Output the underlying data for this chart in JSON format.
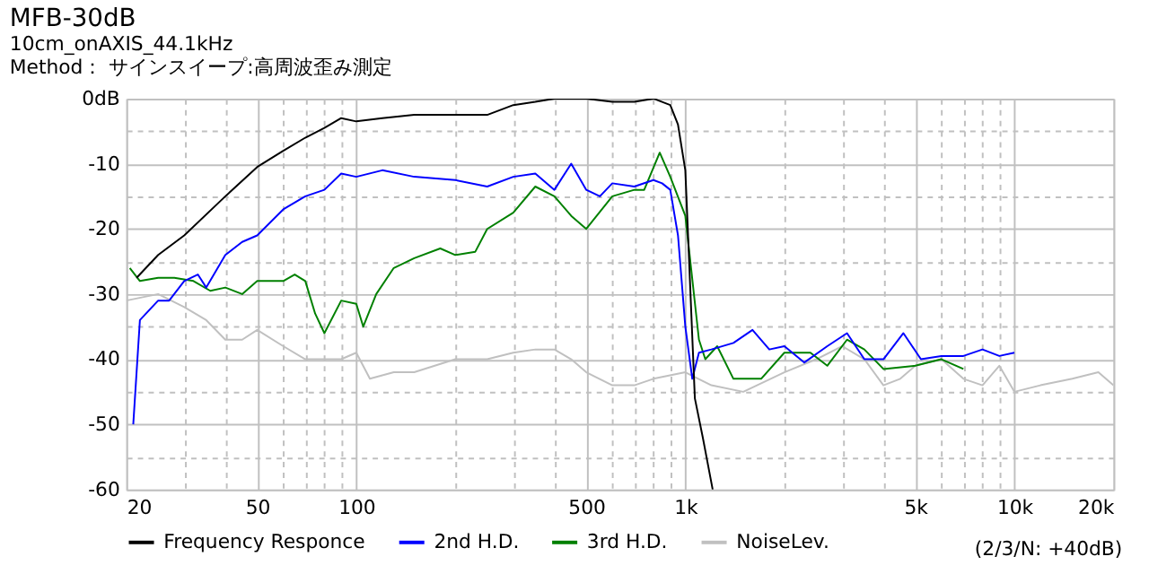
{
  "chart_data": {
    "type": "line",
    "title": "MFB-30dB",
    "subtitle": "10cm_onAXIS_44.1kHz\nMethod： サインスイープ:高周波歪み測定",
    "log": "x",
    "grid": true,
    "legend": "bottom",
    "marker": "none",
    "line_style": "solid",
    "xlim": [
      20,
      20000
    ],
    "ylim": [
      -60,
      0
    ],
    "xticks": [
      20,
      {
        "value": 30,
        "label": null
      },
      {
        "value": 40,
        "label": null
      },
      50,
      {
        "value": 60,
        "label": null
      },
      {
        "value": 70,
        "label": null
      },
      {
        "value": 80,
        "label": null
      },
      {
        "value": 90,
        "label": null
      },
      100,
      {
        "value": 200,
        "label": null
      },
      {
        "value": 300,
        "label": null
      },
      {
        "value": 400,
        "label": null
      },
      500,
      {
        "value": 600,
        "label": null
      },
      {
        "value": 700,
        "label": null
      },
      {
        "value": 800,
        "label": null
      },
      {
        "value": 900,
        "label": null
      },
      {
        "value": 1000,
        "label": "1k"
      },
      {
        "value": 2000,
        "label": null
      },
      {
        "value": 3000,
        "label": null
      },
      {
        "value": 4000,
        "label": null
      },
      {
        "value": 5000,
        "label": "5k"
      },
      {
        "value": 6000,
        "label": null
      },
      {
        "value": 7000,
        "label": null
      },
      {
        "value": 8000,
        "label": null
      },
      {
        "value": 9000,
        "label": null
      },
      {
        "value": 10000,
        "label": "10k"
      },
      {
        "value": 20000,
        "label": "20k"
      }
    ],
    "yticks": [
      {
        "value": 0,
        "label": "0dB"
      },
      {
        "value": -5,
        "label": null
      },
      -10,
      {
        "value": -15,
        "label": null
      },
      -20,
      {
        "value": -25,
        "label": null
      },
      -30,
      {
        "value": -35,
        "label": null
      },
      -40,
      {
        "value": -45,
        "label": null
      },
      -50,
      {
        "value": -55,
        "label": null
      },
      -60
    ],
    "annotations": [
      "(2/3/N: +40dB)"
    ],
    "series": [
      {
        "name": "Frequency Responce",
        "color": "#000000",
        "x": [
          21.5,
          25,
          30,
          40,
          50,
          60,
          70,
          80,
          90,
          100,
          120,
          150,
          200,
          250,
          300,
          350,
          400,
          450,
          500,
          600,
          700,
          800,
          850,
          900,
          950,
          1000,
          1069,
          1130,
          1211
        ],
        "values": [
          -27.5,
          -24,
          -21,
          -15,
          -10.5,
          -8,
          -6,
          -4.5,
          -3,
          -3.5,
          -3,
          -2.5,
          -2.5,
          -2.5,
          -1,
          -0.5,
          0,
          0,
          0,
          -0.5,
          -0.5,
          0,
          -0.5,
          -1,
          -4,
          -11,
          -46,
          -52,
          -60
        ]
      },
      {
        "name": "2nd H.D.",
        "color": "#0000ff",
        "x": [
          21,
          22,
          25,
          27,
          30,
          33,
          35,
          40,
          45,
          50,
          60,
          70,
          80,
          90,
          100,
          120,
          150,
          200,
          250,
          300,
          350,
          400,
          450,
          500,
          550,
          600,
          700,
          800,
          850,
          900,
          950,
          1000,
          1050,
          1100,
          1200,
          1400,
          1600,
          1800,
          2000,
          2300,
          2700,
          3100,
          3500,
          4000,
          4600,
          5200,
          6000,
          7000,
          8000,
          9000,
          10000
        ],
        "values": [
          -50,
          -34,
          -31,
          -31,
          -28,
          -27,
          -29,
          -24,
          -22,
          -21,
          -17,
          -15,
          -14,
          -11.5,
          -12,
          -11,
          -12,
          -12.5,
          -13.5,
          -12,
          -11.5,
          -14,
          -10,
          -14,
          -15,
          -13,
          -13.5,
          -12.5,
          -13,
          -14,
          -21,
          -35,
          -43,
          -39,
          -38.5,
          -37.5,
          -35.5,
          -38.5,
          -38,
          -40.5,
          -38,
          -36,
          -40,
          -40,
          -36,
          -40,
          -39.5,
          -39.5,
          -38.5,
          -39.5,
          -39
        ]
      },
      {
        "name": "3rd H.D.",
        "color": "#008000",
        "x": [
          20.5,
          22,
          25,
          28,
          32,
          36,
          40,
          45,
          50,
          60,
          65,
          70,
          75,
          80,
          90,
          100,
          105,
          115,
          130,
          150,
          180,
          200,
          230,
          250,
          300,
          350,
          400,
          450,
          500,
          600,
          700,
          750,
          836,
          900,
          1000,
          1100,
          1150,
          1250,
          1400,
          1700,
          2000,
          2400,
          2700,
          3100,
          3500,
          4000,
          5000,
          6000,
          7000
        ],
        "values": [
          -26,
          -28,
          -27.5,
          -27.5,
          -28,
          -29.5,
          -29,
          -30,
          -28,
          -28,
          -27,
          -28,
          -33,
          -36,
          -31,
          -31.5,
          -35,
          -30,
          -26,
          -24.5,
          -23,
          -24,
          -23.5,
          -20,
          -17.5,
          -13.5,
          -15,
          -18,
          -20,
          -15,
          -14,
          -14,
          -8.3,
          -12,
          -18,
          -37,
          -40,
          -38,
          -43,
          -43,
          -39,
          -39,
          -41,
          -37,
          -38.5,
          -41.5,
          -41,
          -40,
          -41.5
        ]
      },
      {
        "name": "NoiseLev.",
        "color": "#c0c0c0",
        "x": [
          20,
          25,
          30,
          35,
          40,
          45,
          50,
          60,
          70,
          80,
          90,
          100,
          110,
          130,
          150,
          200,
          250,
          300,
          350,
          400,
          450,
          500,
          600,
          700,
          800,
          1000,
          1200,
          1500,
          2000,
          2500,
          3000,
          3500,
          4000,
          4500,
          5000,
          6000,
          7000,
          8000,
          9000,
          10000,
          12000,
          15000,
          18000,
          20000
        ],
        "values": [
          -31,
          -30,
          -32,
          -34,
          -37,
          -37,
          -35.5,
          -38,
          -40,
          -40,
          -40,
          -39,
          -43,
          -42,
          -42,
          -40,
          -40,
          -39,
          -38.5,
          -38.5,
          -40,
          -42,
          -44,
          -44,
          -43,
          -42,
          -44,
          -45,
          -42,
          -40,
          -38,
          -40,
          -44,
          -43,
          -41,
          -40,
          -43,
          -44,
          -41,
          -45,
          -44,
          -43,
          -42,
          -44
        ]
      }
    ]
  }
}
